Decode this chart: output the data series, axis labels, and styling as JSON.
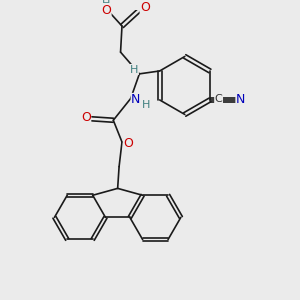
{
  "bg_color": "#ebebeb",
  "bond_color": "#1a1a1a",
  "bond_width": 1.2,
  "atom_colors": {
    "O": "#cc0000",
    "N": "#0000bb",
    "H": "#408080",
    "C": "#333333"
  },
  "fig_size": [
    3.0,
    3.0
  ],
  "dpi": 100
}
